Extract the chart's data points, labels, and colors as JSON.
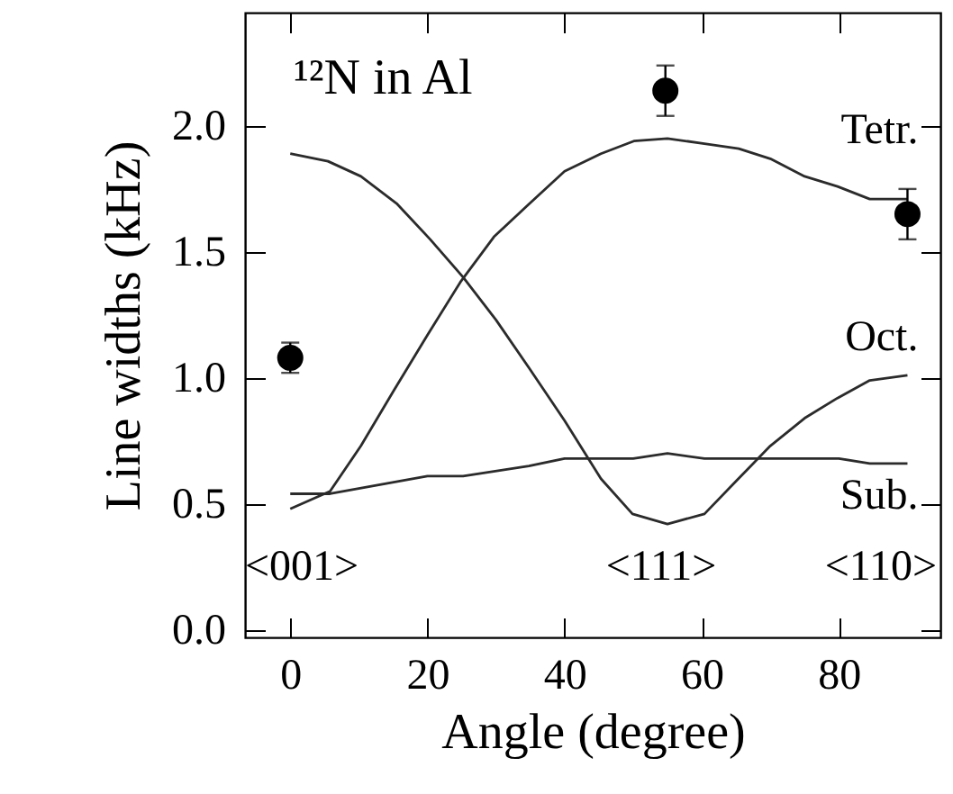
{
  "chart_data": {
    "type": "line",
    "xlabel": "Angle (degree)",
    "ylabel": "Line widths (kHz)",
    "xlim": [
      -6.6,
      94.8
    ],
    "ylim": [
      -0.03,
      2.45
    ],
    "xticks": [
      0,
      20,
      40,
      60,
      80
    ],
    "yticks": [
      {
        "value": 0,
        "label": "0.0"
      },
      0.5,
      {
        "value": 1,
        "label": "1.0"
      },
      1.5,
      {
        "value": 2,
        "label": "2.0"
      }
    ],
    "marker": "none",
    "line_style": "solid",
    "series": [
      {
        "name": "Tetr.",
        "color": "#2b2b2b",
        "x": [
          0,
          5.8,
          10.3,
          15.1,
          20,
          24.8,
          29.7,
          34.8,
          40,
          45.3,
          50.1,
          55,
          60.4,
          65.4,
          70,
          75,
          79.8,
          84.5,
          90
        ],
        "values": [
          0.48,
          0.55,
          0.73,
          0.95,
          1.17,
          1.38,
          1.56,
          1.69,
          1.82,
          1.89,
          1.94,
          1.95,
          1.93,
          1.91,
          1.87,
          1.8,
          1.76,
          1.71,
          1.71
        ]
      },
      {
        "name": "Oct.",
        "color": "#2b2b2b",
        "x": [
          0,
          5.5,
          10.3,
          15.6,
          20.4,
          25.2,
          30,
          34.8,
          40,
          45.3,
          49.9,
          55,
          60.4,
          65,
          70,
          75,
          79.8,
          84.5,
          90
        ],
        "values": [
          1.89,
          1.86,
          1.8,
          1.69,
          1.55,
          1.4,
          1.23,
          1.04,
          0.83,
          0.6,
          0.46,
          0.42,
          0.46,
          0.59,
          0.73,
          0.84,
          0.92,
          0.99,
          1.01
        ]
      },
      {
        "name": "Sub.",
        "color": "#2b2b2b",
        "x": [
          0,
          5.8,
          20,
          25.2,
          34.8,
          40,
          50,
          55,
          60.4,
          80,
          84.5,
          90
        ],
        "values": [
          0.54,
          0.54,
          0.61,
          0.61,
          0.65,
          0.68,
          0.68,
          0.7,
          0.68,
          0.68,
          0.66,
          0.66
        ]
      },
      {
        "type": "scatter",
        "marker": "circle",
        "color": "#000000",
        "x": [
          0,
          54.7,
          90
        ],
        "values": [
          1.08,
          2.14,
          1.65
        ],
        "errors": [
          0.06,
          0.1,
          0.1
        ]
      }
    ],
    "annotations": [
      "¹²N in Al",
      "<001>",
      "<111>",
      "<110>"
    ]
  }
}
